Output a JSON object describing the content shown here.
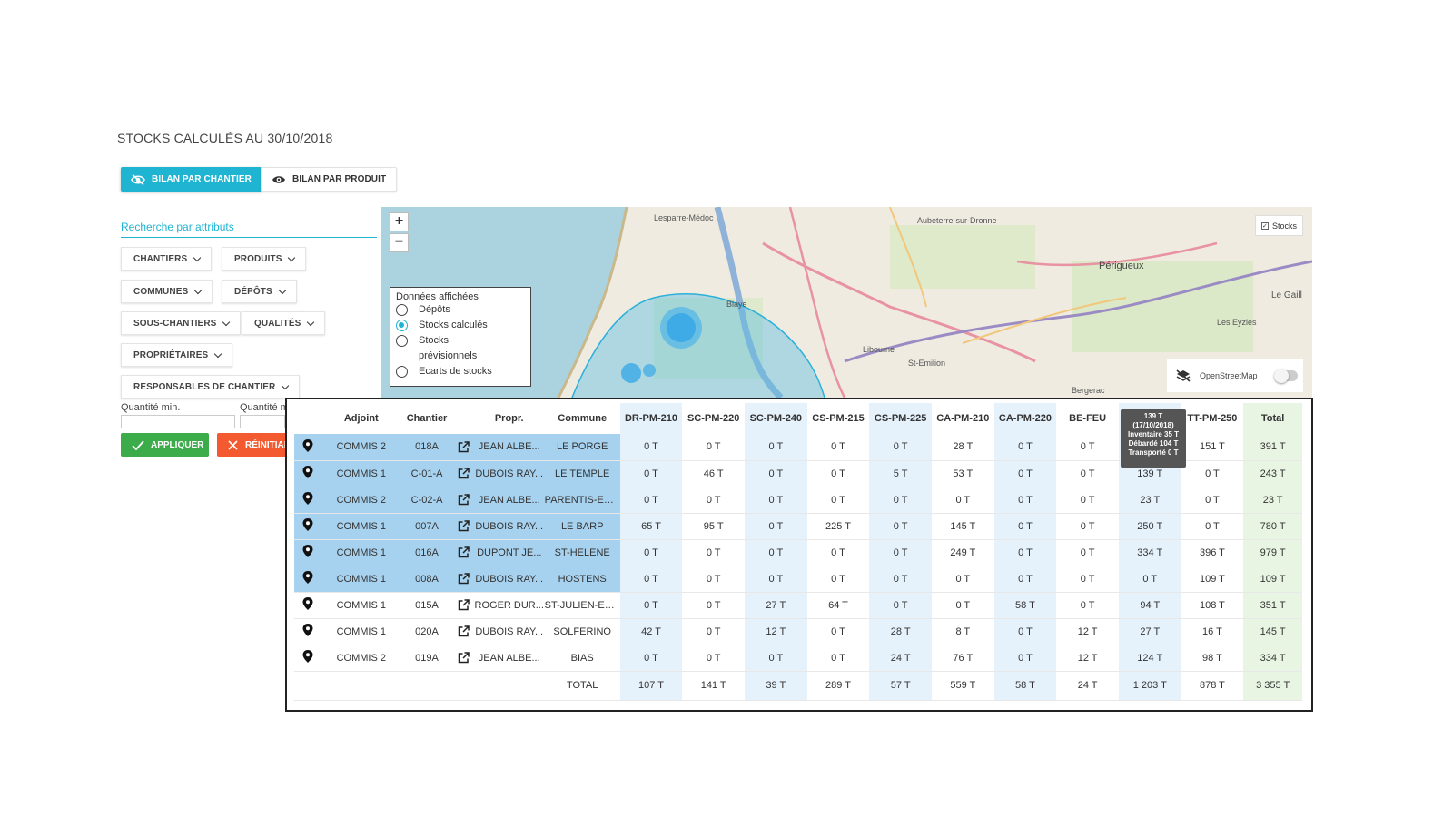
{
  "page": {
    "title": "STOCKS CALCULÉS AU 30/10/2018"
  },
  "tabs": {
    "chantier_label": "BILAN PAR CHANTIER",
    "produit_label": "BILAN PAR PRODUIT"
  },
  "search": {
    "placeholder": "Recherche par attributs"
  },
  "filters": {
    "chantiers": "CHANTIERS",
    "produits": "PRODUITS",
    "communes": "COMMUNES",
    "depots": "DÉPÔTS",
    "sous_chantiers": "SOUS-CHANTIERS",
    "qualites": "QUALITÉS",
    "proprietaires": "PROPRIÉTAIRES",
    "responsables": "RESPONSABLES DE CHANTIER"
  },
  "quantity": {
    "min_label": "Quantité min.",
    "max_label": "Quantité m"
  },
  "actions": {
    "apply_label": "APPLIQUER",
    "reset_label": "RÉINITIAL"
  },
  "map": {
    "zoom_in": "+",
    "zoom_out": "−",
    "legend_title": "Données affichées",
    "legend_options": [
      "Dépôts",
      "Stocks calculés",
      "Stocks",
      "prévisionnels",
      "Ecarts de stocks"
    ],
    "stocks_label": "Stocks",
    "basemap_label": "OpenStreetMap",
    "place_labels": [
      "Lesparre-Médoc",
      "Blaye",
      "Aubeterre-sur-Dronne",
      "Périgueux",
      "Bergerac",
      "Libourne",
      "St-Emilion",
      "Le Gaill",
      "Les Eyzies"
    ]
  },
  "tooltip": {
    "line1": "139 T",
    "line2": "(17/10/2018)",
    "line3": "Inventaire 35 T",
    "line4": "Débardé 104 T",
    "line5": "Transporté 0 T"
  },
  "table": {
    "headers": [
      "",
      "Adjoint",
      "Chantier",
      "",
      "Propr.",
      "Commune",
      "DR-PM-210",
      "SC-PM-220",
      "SC-PM-240",
      "CS-PM-215",
      "CS-PM-225",
      "CA-PM-210",
      "CA-PM-220",
      "BE-FEU",
      "",
      "TT-PM-250",
      "Total"
    ],
    "rows": [
      {
        "adjoint": "COMMIS 2",
        "chantier": "018A",
        "propr": "JEAN ALBE...",
        "commune": "LE PORGE",
        "v": [
          "0 T",
          "0 T",
          "0 T",
          "0 T",
          "0 T",
          "28 T",
          "0 T",
          "0 T",
          "",
          "151 T",
          "391 T"
        ]
      },
      {
        "adjoint": "COMMIS 1",
        "chantier": "C-01-A",
        "propr": "DUBOIS RAY...",
        "commune": "LE TEMPLE",
        "v": [
          "0 T",
          "46 T",
          "0 T",
          "0 T",
          "5 T",
          "53 T",
          "0 T",
          "0 T",
          "139 T",
          "0 T",
          "243 T"
        ]
      },
      {
        "adjoint": "COMMIS 2",
        "chantier": "C-02-A",
        "propr": "JEAN ALBE...",
        "commune": "PARENTIS-EN-...",
        "v": [
          "0 T",
          "0 T",
          "0 T",
          "0 T",
          "0 T",
          "0 T",
          "0 T",
          "0 T",
          "23 T",
          "0 T",
          "23 T"
        ]
      },
      {
        "adjoint": "COMMIS 1",
        "chantier": "007A",
        "propr": "DUBOIS RAY...",
        "commune": "LE BARP",
        "v": [
          "65 T",
          "95 T",
          "0 T",
          "225 T",
          "0 T",
          "145 T",
          "0 T",
          "0 T",
          "250 T",
          "0 T",
          "780 T"
        ]
      },
      {
        "adjoint": "COMMIS 1",
        "chantier": "016A",
        "propr": "DUPONT JE...",
        "commune": "ST-HELENE",
        "v": [
          "0 T",
          "0 T",
          "0 T",
          "0 T",
          "0 T",
          "249 T",
          "0 T",
          "0 T",
          "334 T",
          "396 T",
          "979 T"
        ]
      },
      {
        "adjoint": "COMMIS 1",
        "chantier": "008A",
        "propr": "DUBOIS RAY...",
        "commune": "HOSTENS",
        "v": [
          "0 T",
          "0 T",
          "0 T",
          "0 T",
          "0 T",
          "0 T",
          "0 T",
          "0 T",
          "0 T",
          "109 T",
          "109 T"
        ]
      },
      {
        "adjoint": "COMMIS 1",
        "chantier": "015A",
        "propr": "ROGER DUR...",
        "commune": "ST-JULIEN-EN-...",
        "v": [
          "0 T",
          "0 T",
          "27 T",
          "64 T",
          "0 T",
          "0 T",
          "58 T",
          "0 T",
          "94 T",
          "108 T",
          "351 T"
        ]
      },
      {
        "adjoint": "COMMIS 1",
        "chantier": "020A",
        "propr": "DUBOIS RAY...",
        "commune": "SOLFERINO",
        "v": [
          "42 T",
          "0 T",
          "12 T",
          "0 T",
          "28 T",
          "8 T",
          "0 T",
          "12 T",
          "27 T",
          "16 T",
          "145 T"
        ]
      },
      {
        "adjoint": "COMMIS 2",
        "chantier": "019A",
        "propr": "JEAN ALBE...",
        "commune": "BIAS",
        "v": [
          "0 T",
          "0 T",
          "0 T",
          "0 T",
          "24 T",
          "76 T",
          "0 T",
          "12 T",
          "124 T",
          "98 T",
          "334 T"
        ]
      }
    ],
    "total_label": "TOTAL",
    "totals": [
      "107 T",
      "141 T",
      "39 T",
      "289 T",
      "57 T",
      "559 T",
      "58 T",
      "24 T",
      "1 203 T",
      "878 T",
      "3 355 T"
    ]
  },
  "colors": {
    "accent": "#1fb4d2",
    "apply": "#3cab4a",
    "reset": "#f35a2f",
    "selected_row": "#a7d2ef",
    "band": "#e6f2fb",
    "total_column": "#e8f5e3"
  }
}
